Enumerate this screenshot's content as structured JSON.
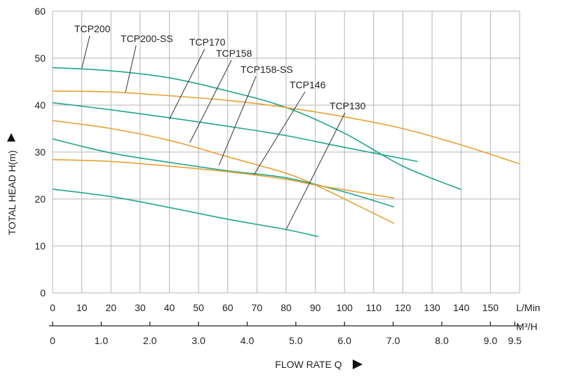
{
  "chart_data": {
    "type": "line",
    "x_label": "FLOW RATE Q",
    "x_unit_primary": "L/Min",
    "x_unit_secondary": "M³/H",
    "y_label": "TOTAL HEAD H(m)",
    "xlim": [
      0,
      160
    ],
    "ylim": [
      0,
      60
    ],
    "grid": true,
    "x_ticks_lmin": [
      "0",
      "10",
      "20",
      "30",
      "40",
      "50",
      "60",
      "70",
      "80",
      "90",
      "100",
      "110",
      "120",
      "130",
      "140",
      "150"
    ],
    "x_ticks_m3h": [
      {
        "label": "0",
        "value": 0
      },
      {
        "label": "1.0",
        "value": 1.0
      },
      {
        "label": "2.0",
        "value": 2.0
      },
      {
        "label": "3.0",
        "value": 3.0
      },
      {
        "label": "4.0",
        "value": 4.0
      },
      {
        "label": "5.0",
        "value": 5.0
      },
      {
        "label": "6.0",
        "value": 6.0
      },
      {
        "label": "7.0",
        "value": 7.0
      },
      {
        "label": "8.0",
        "value": 8.0
      },
      {
        "label": "9.0",
        "value": 9.0
      },
      {
        "label": "9.5",
        "value": 9.5
      }
    ],
    "y_ticks": [
      "0",
      "10",
      "20",
      "30",
      "40",
      "50",
      "60"
    ],
    "series": [
      {
        "name": "TCP200",
        "color": "#1fa58f",
        "points": [
          [
            0,
            48
          ],
          [
            20,
            47.3
          ],
          [
            40,
            45.8
          ],
          [
            60,
            43
          ],
          [
            80,
            39.5
          ],
          [
            100,
            34
          ],
          [
            120,
            27
          ],
          [
            140,
            22
          ]
        ],
        "label_point": [
          10,
          47.8
        ]
      },
      {
        "name": "TCP200-SS",
        "color": "#e8a131",
        "points": [
          [
            0,
            43
          ],
          [
            20,
            42.8
          ],
          [
            40,
            42
          ],
          [
            60,
            41
          ],
          [
            80,
            39.5
          ],
          [
            100,
            37.5
          ],
          [
            120,
            35
          ],
          [
            140,
            31.5
          ],
          [
            160,
            27.5
          ]
        ],
        "label_point": [
          25,
          42.8
        ]
      },
      {
        "name": "TCP170",
        "color": "#1fa58f",
        "points": [
          [
            0,
            40.5
          ],
          [
            20,
            39
          ],
          [
            40,
            37.3
          ],
          [
            60,
            35.5
          ],
          [
            80,
            33.5
          ],
          [
            100,
            31
          ],
          [
            125,
            28
          ]
        ],
        "label_point": [
          40,
          37
        ]
      },
      {
        "name": "TCP158",
        "color": "#e8a131",
        "points": [
          [
            0,
            36.7
          ],
          [
            20,
            35
          ],
          [
            40,
            32.5
          ],
          [
            60,
            29
          ],
          [
            80,
            25.5
          ],
          [
            90,
            23
          ],
          [
            100,
            20
          ],
          [
            117,
            14.8
          ]
        ],
        "label_point": [
          47,
          32
        ]
      },
      {
        "name": "TCP158-SS",
        "color": "#1fa58f",
        "points": [
          [
            0,
            32.8
          ],
          [
            20,
            29.8
          ],
          [
            40,
            27.8
          ],
          [
            60,
            26
          ],
          [
            80,
            24.5
          ],
          [
            100,
            21.5
          ],
          [
            117,
            18.3
          ]
        ],
        "label_point": [
          57,
          27.2
        ]
      },
      {
        "name": "TCP146",
        "color": "#e8a131",
        "points": [
          [
            0,
            28.4
          ],
          [
            20,
            28
          ],
          [
            40,
            27
          ],
          [
            60,
            25.8
          ],
          [
            80,
            24.2
          ],
          [
            90,
            23
          ],
          [
            117,
            20.2
          ]
        ],
        "label_point": [
          69,
          25.2
        ]
      },
      {
        "name": "TCP130",
        "color": "#1fa58f",
        "points": [
          [
            0,
            22.1
          ],
          [
            20,
            20.5
          ],
          [
            40,
            18.2
          ],
          [
            60,
            15.7
          ],
          [
            80,
            13.5
          ],
          [
            91,
            12
          ]
        ],
        "label_point": [
          80,
          13.5
        ]
      }
    ]
  }
}
